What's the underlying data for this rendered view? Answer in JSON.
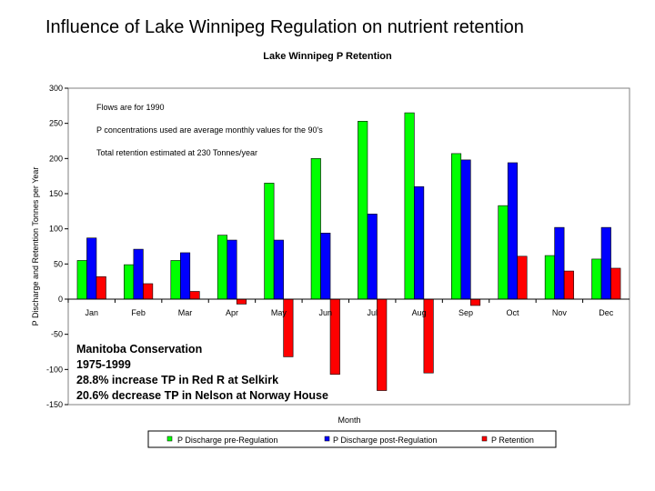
{
  "slide_title": "Influence of Lake Winnipeg Regulation on nutrient retention",
  "chart_data": {
    "type": "bar",
    "title": "Lake Winnipeg P Retention",
    "xlabel": "Month",
    "ylabel": "P Discharge and Retention Tonnes per Year",
    "ylim": [
      -150,
      300
    ],
    "yticks": [
      300,
      250,
      200,
      150,
      100,
      50,
      0,
      -50,
      -100,
      -150
    ],
    "categories": [
      "Jan",
      "Feb",
      "Mar",
      "Apr",
      "May",
      "Jun",
      "Jul",
      "Aug",
      "Sep",
      "Oct",
      "Nov",
      "Dec"
    ],
    "series": [
      {
        "name": "P Discharge pre-Regulation",
        "color": "#00ff00",
        "values": [
          55,
          49,
          55,
          91,
          165,
          200,
          253,
          265,
          207,
          133,
          62,
          57
        ]
      },
      {
        "name": "P Discharge post-Regulation",
        "color": "#0000ff",
        "values": [
          87,
          71,
          66,
          84,
          84,
          94,
          121,
          160,
          198,
          194,
          102,
          102
        ]
      },
      {
        "name": "P Retention",
        "color": "#ff0000",
        "values": [
          32,
          22,
          11,
          -7,
          -82,
          -107,
          -130,
          -105,
          -9,
          61,
          40,
          44
        ]
      }
    ],
    "grid": false,
    "legend_position": "bottom",
    "plot_background": "#ffffff",
    "annotations": [
      "Flows are for 1990",
      "P concentrations used are average monthly values for the 90's",
      "Total retention estimated at   230 Tonnes/year"
    ],
    "conservation_notes": [
      "Manitoba Conservation",
      "1975-1999",
      "28.8% increase TP in Red R at Selkirk",
      "20.6% decrease TP in Nelson at Norway House"
    ]
  }
}
